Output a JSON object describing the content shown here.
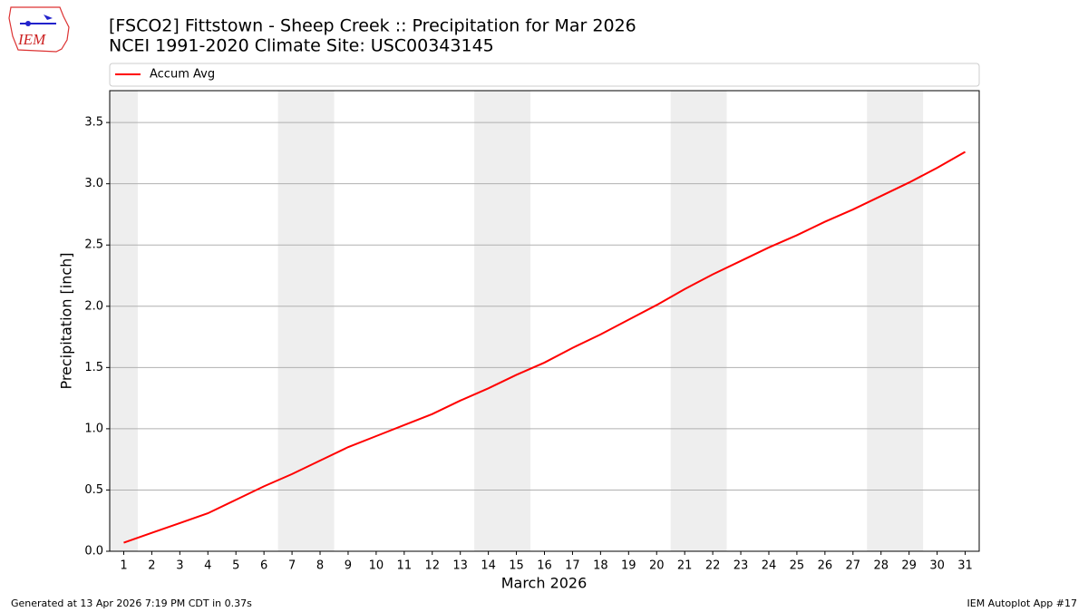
{
  "chart_data": {
    "type": "line",
    "title": "[FSCO2] Fittstown - Sheep Creek :: Precipitation for Mar 2026",
    "subtitle": "NCEI 1991-2020 Climate Site: USC00343145",
    "xlabel": "March 2026",
    "ylabel": "Precipitation [inch]",
    "x": [
      1,
      2,
      3,
      4,
      5,
      6,
      7,
      8,
      9,
      10,
      11,
      12,
      13,
      14,
      15,
      16,
      17,
      18,
      19,
      20,
      21,
      22,
      23,
      24,
      25,
      26,
      27,
      28,
      29,
      30,
      31
    ],
    "series": [
      {
        "name": "Accum Avg",
        "color": "#ff0000",
        "values": [
          0.07,
          0.15,
          0.23,
          0.31,
          0.42,
          0.53,
          0.63,
          0.74,
          0.85,
          0.94,
          1.03,
          1.12,
          1.23,
          1.33,
          1.44,
          1.54,
          1.66,
          1.77,
          1.89,
          2.01,
          2.14,
          2.26,
          2.37,
          2.48,
          2.58,
          2.69,
          2.79,
          2.9,
          3.01,
          3.13,
          3.26
        ]
      }
    ],
    "xlim": [
      0.5,
      31.5
    ],
    "xticks": [
      1,
      2,
      3,
      4,
      5,
      6,
      7,
      8,
      9,
      10,
      11,
      12,
      13,
      14,
      15,
      16,
      17,
      18,
      19,
      20,
      21,
      22,
      23,
      24,
      25,
      26,
      27,
      28,
      29,
      30,
      31
    ],
    "ylim": [
      0,
      3.76
    ],
    "yticks": [
      {
        "value": 0,
        "label": "0.0"
      },
      0.5,
      {
        "value": 1,
        "label": "1.0"
      },
      1.5,
      {
        "value": 2,
        "label": "2.0"
      },
      2.5,
      {
        "value": 3,
        "label": "3.0"
      },
      3.5
    ],
    "grid": true,
    "weekend_spans": [
      [
        0.5,
        1.5
      ],
      [
        6.5,
        8.5
      ],
      [
        13.5,
        15.5
      ],
      [
        20.5,
        22.5
      ],
      [
        27.5,
        29.5
      ]
    ],
    "legend": "top"
  },
  "logo": "IEM",
  "footer_left": "Generated at 13 Apr 2026 7:19 PM CDT in 0.37s",
  "footer_right": "IEM Autoplot App #17"
}
